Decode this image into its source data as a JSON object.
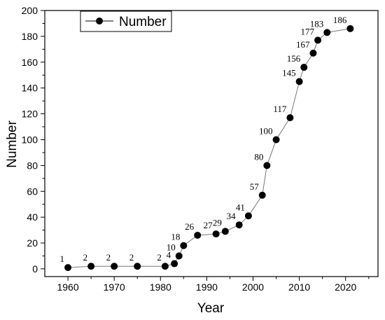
{
  "chart_data": {
    "type": "line",
    "xlabel": "Year",
    "ylabel": "Number",
    "xlim": [
      1955,
      2027
    ],
    "ylim": [
      -6,
      200
    ],
    "xticks": [
      "1960",
      "1970",
      "1980",
      "1990",
      "2000",
      "2010",
      "2020"
    ],
    "yticks": [
      "0",
      "20",
      "40",
      "60",
      "80",
      "100",
      "120",
      "140",
      "160",
      "180",
      "200"
    ],
    "legend_position": "top-left",
    "grid": false,
    "series": [
      {
        "name": "Number",
        "color": "#000000",
        "x": [
          1960,
          1965,
          1970,
          1975,
          1981,
          1983,
          1984,
          1985,
          1988,
          1992,
          1994,
          1997,
          1999,
          2002,
          2003,
          2005,
          2008,
          2010,
          2011,
          2013,
          2014,
          2016,
          2021
        ],
        "y": [
          1,
          2,
          2,
          2,
          2,
          4,
          10,
          18,
          26,
          27,
          29,
          34,
          41,
          57,
          80,
          100,
          117,
          145,
          156,
          167,
          177,
          183,
          186
        ],
        "labels": [
          "1",
          "2",
          "2",
          "2",
          "2",
          "4",
          "10",
          "18",
          "26",
          "27",
          "29",
          "34",
          "41",
          "57",
          "80",
          "100",
          "117",
          "145",
          "156",
          "167",
          "177",
          "183",
          "186"
        ]
      }
    ]
  }
}
